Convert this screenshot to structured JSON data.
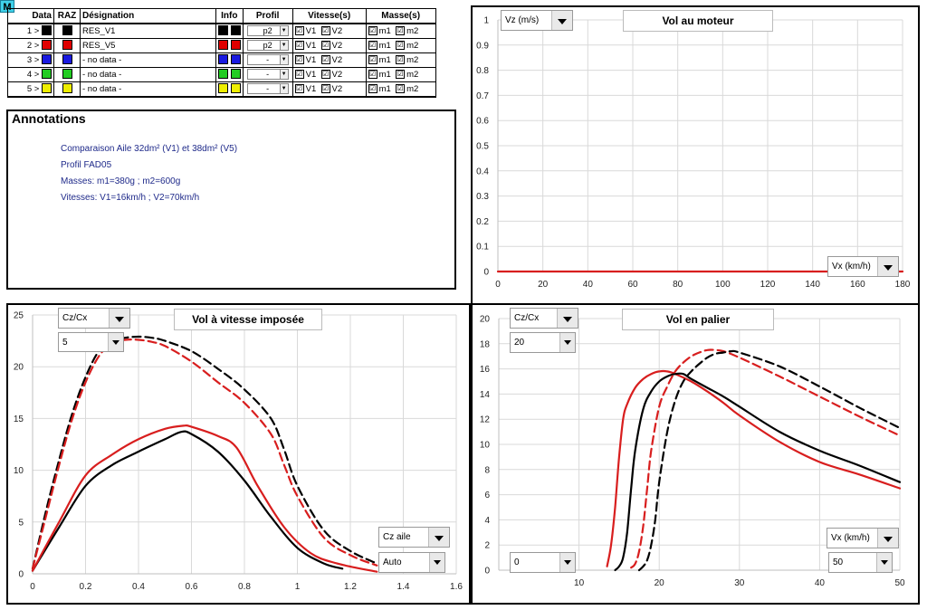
{
  "badge": "M",
  "table": {
    "headers": [
      "Data",
      "RAZ",
      "Désignation",
      "Info",
      "Profil",
      "Vitesse(s)",
      "Masse(s)"
    ],
    "rows": [
      {
        "idx": "1 >",
        "color": "#000000",
        "name": "RES_V1",
        "profil": "p2",
        "v1": "V1",
        "v2": "V2",
        "m1": "m1",
        "m2": "m2"
      },
      {
        "idx": "2 >",
        "color": "#e00000",
        "name": "RES_V5",
        "profil": "p2",
        "v1": "V1",
        "v2": "V2",
        "m1": "m1",
        "m2": "m2"
      },
      {
        "idx": "3 >",
        "color": "#1a1ae0",
        "name": "- no data -",
        "profil": "-",
        "v1": "V1",
        "v2": "V2",
        "m1": "m1",
        "m2": "m2"
      },
      {
        "idx": "4 >",
        "color": "#22cc22",
        "name": "- no data -",
        "profil": "-",
        "v1": "V1",
        "v2": "V2",
        "m1": "m1",
        "m2": "m2"
      },
      {
        "idx": "5 >",
        "color": "#eeee00",
        "name": "- no data -",
        "profil": "-",
        "v1": "V1",
        "v2": "V2",
        "m1": "m1",
        "m2": "m2"
      }
    ],
    "check_mark": "☑"
  },
  "annotations": {
    "title": "Annotations",
    "lines": [
      "Comparaison Aile 32dm² (V1) et 38dm² (V5)",
      "Profil FAD05",
      "Masses: m1=380g ; m2=600g",
      "Vitesses: V1=16km/h ; V2=70km/h"
    ]
  },
  "charts": {
    "moteur": {
      "y_dropdown": "Vz (m/s)",
      "x_dropdown": "Vx (km/h)"
    },
    "vitesse": {
      "y_dropdown": "Cz/Cx",
      "y_value": "5",
      "x_dropdown": "Cz aile",
      "x_value": "Auto"
    },
    "palier": {
      "y_dropdown": "Cz/Cx",
      "y_value": "20",
      "x_dropdown": "Vx (km/h)",
      "x_value": "50",
      "x_min_value": "0"
    }
  },
  "colors": {
    "black": "#000000",
    "red": "#d81e1e",
    "grid": "#d9d9d9"
  },
  "chart_data": [
    {
      "type": "line",
      "title": "Vol au moteur",
      "xlabel": "Vx (km/h)",
      "ylabel": "Vz (m/s)",
      "xlim": [
        0,
        180
      ],
      "ylim": [
        0,
        1
      ],
      "xticks": [
        0,
        20,
        40,
        60,
        80,
        100,
        120,
        140,
        160,
        180
      ],
      "yticks": [
        0,
        0.1,
        0.2,
        0.3,
        0.4,
        0.5,
        0.6,
        0.7,
        0.8,
        0.9,
        1
      ],
      "series": [
        {
          "name": "RES_V5",
          "color": "#d81e1e",
          "dash": false,
          "x": [
            0,
            180
          ],
          "y": [
            0,
            0
          ]
        }
      ]
    },
    {
      "type": "line",
      "title": "Vol à vitesse imposée",
      "xlabel": "Cz aile",
      "ylabel": "Cz/Cx",
      "xlim": [
        0,
        1.6
      ],
      "ylim": [
        0,
        25
      ],
      "xticks": [
        0,
        0.2,
        0.4,
        0.6,
        0.8,
        1,
        1.2,
        1.4,
        1.6
      ],
      "yticks": [
        0,
        5,
        10,
        15,
        20,
        25
      ],
      "series": [
        {
          "name": "RES_V1 V2",
          "color": "#000000",
          "dash": true,
          "x": [
            0,
            0.05,
            0.1,
            0.15,
            0.2,
            0.25,
            0.3,
            0.35,
            0.4,
            0.45,
            0.5,
            0.6,
            0.7,
            0.8,
            0.9,
            0.95,
            1.0,
            1.1,
            1.2,
            1.3
          ],
          "y": [
            0.5,
            6,
            11,
            15.5,
            19,
            21.5,
            22.5,
            22.8,
            22.9,
            22.8,
            22.5,
            21.5,
            19.8,
            17.8,
            15,
            12,
            8.5,
            4.2,
            2.2,
            1
          ]
        },
        {
          "name": "RES_V5 V2",
          "color": "#d81e1e",
          "dash": true,
          "x": [
            0,
            0.05,
            0.1,
            0.15,
            0.2,
            0.25,
            0.3,
            0.35,
            0.4,
            0.45,
            0.5,
            0.6,
            0.7,
            0.8,
            0.9,
            0.95,
            1.0,
            1.1,
            1.2,
            1.3
          ],
          "y": [
            0.5,
            5.5,
            10.5,
            15,
            18.5,
            21,
            22.3,
            22.6,
            22.6,
            22.4,
            22,
            20.5,
            18.5,
            16.5,
            13.5,
            10.5,
            7.5,
            3.5,
            1.8,
            0.8
          ]
        },
        {
          "name": "RES_V1 V1",
          "color": "#000000",
          "dash": false,
          "x": [
            0,
            0.1,
            0.2,
            0.3,
            0.4,
            0.5,
            0.56,
            0.6,
            0.7,
            0.8,
            0.9,
            1.0,
            1.1,
            1.17
          ],
          "y": [
            0.3,
            4.5,
            8.5,
            10.5,
            11.8,
            13,
            13.7,
            13.5,
            11.8,
            9,
            5.5,
            2.5,
            1,
            0.5
          ]
        },
        {
          "name": "RES_V5 V1",
          "color": "#d81e1e",
          "dash": false,
          "x": [
            0,
            0.1,
            0.2,
            0.3,
            0.4,
            0.5,
            0.57,
            0.6,
            0.7,
            0.77,
            0.85,
            0.95,
            1.05,
            1.15,
            1.3
          ],
          "y": [
            0.3,
            5,
            9.5,
            11.5,
            13,
            14,
            14.3,
            14.2,
            13.3,
            12.2,
            8.5,
            4.5,
            2,
            1,
            0.2
          ]
        }
      ]
    },
    {
      "type": "line",
      "title": "Vol en palier",
      "xlabel": "Vx (km/h)",
      "ylabel": "Cz/Cx",
      "xlim": [
        0,
        50
      ],
      "ylim": [
        0,
        20
      ],
      "xticks": [
        10,
        20,
        30,
        40,
        50
      ],
      "yticks": [
        0,
        2,
        4,
        6,
        8,
        10,
        12,
        14,
        16,
        18,
        20
      ],
      "series": [
        {
          "name": "RES_V5 m1",
          "color": "#d81e1e",
          "dash": false,
          "x": [
            13.5,
            14,
            14.5,
            15,
            15.5,
            16,
            17,
            18,
            19,
            20,
            21,
            22,
            24,
            26,
            28,
            30,
            35,
            40,
            45,
            50
          ],
          "y": [
            0.3,
            2,
            5,
            9,
            12,
            13.2,
            14.5,
            15.2,
            15.6,
            15.8,
            15.8,
            15.6,
            15,
            14.2,
            13.3,
            12.3,
            10.2,
            8.6,
            7.6,
            6.5
          ]
        },
        {
          "name": "RES_V1 m1",
          "color": "#000000",
          "dash": false,
          "x": [
            14.5,
            15,
            15.5,
            16,
            16.5,
            17,
            18,
            19,
            20,
            21,
            22,
            23,
            24,
            26,
            28,
            30,
            35,
            40,
            45,
            50
          ],
          "y": [
            0,
            0.3,
            1,
            3,
            6.5,
            9.5,
            12.8,
            14.2,
            15,
            15.4,
            15.6,
            15.6,
            15.2,
            14.5,
            13.8,
            13,
            11,
            9.5,
            8.3,
            7
          ]
        },
        {
          "name": "RES_V5 m2",
          "color": "#d81e1e",
          "dash": true,
          "x": [
            16.5,
            17,
            17.5,
            18,
            18.5,
            19,
            20,
            21,
            22,
            23,
            24,
            25,
            26,
            27,
            28,
            30,
            35,
            40,
            45,
            50
          ],
          "y": [
            0.2,
            0.5,
            1.5,
            3.5,
            6.5,
            9.5,
            13,
            14.6,
            15.8,
            16.5,
            17,
            17.3,
            17.5,
            17.5,
            17.4,
            16.9,
            15.4,
            13.8,
            12.2,
            10.7
          ]
        },
        {
          "name": "RES_V1 m2",
          "color": "#000000",
          "dash": true,
          "x": [
            17.5,
            18,
            18.5,
            19,
            19.5,
            20,
            21,
            22,
            23,
            24,
            25,
            26,
            27,
            28,
            29,
            30,
            35,
            40,
            45,
            50
          ],
          "y": [
            0,
            0.3,
            0.8,
            2,
            4,
            7,
            11,
            13.5,
            15,
            15.8,
            16.4,
            16.9,
            17.2,
            17.3,
            17.4,
            17.3,
            16.2,
            14.6,
            12.9,
            11.3
          ]
        }
      ]
    }
  ]
}
